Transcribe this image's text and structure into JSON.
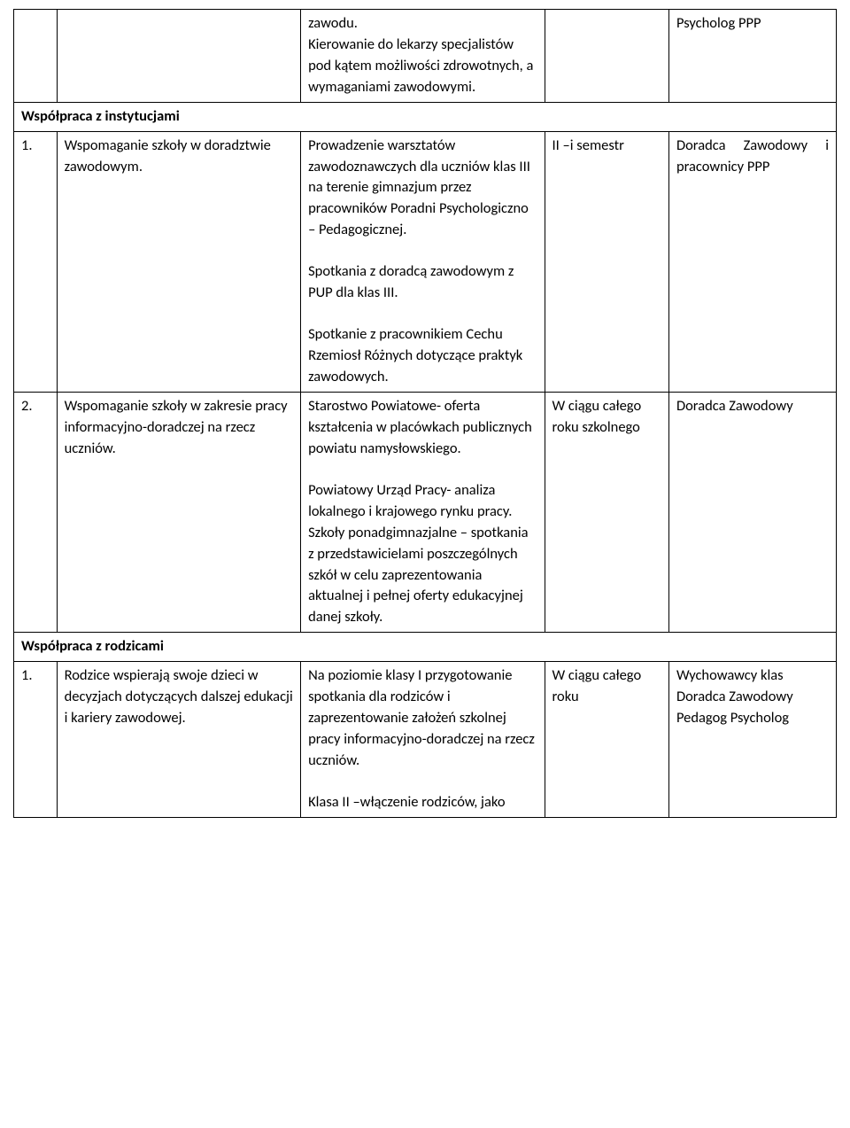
{
  "row0": {
    "col1": "",
    "col2": "",
    "col3": "zawodu.\nKierowanie do lekarzy specjalistów pod kątem możliwości zdrowotnych, a wymaganiami zawodowymi.",
    "col4": "",
    "col5": "Psycholog PPP"
  },
  "header1": "Współpraca z instytucjami",
  "row1": {
    "col1": "1.",
    "col2": "Wspomaganie szkoły w doradztwie zawodowym.",
    "col3p1": "Prowadzenie warsztatów zawodoznawczych dla uczniów klas III na terenie gimnazjum przez pracowników Poradni Psychologiczno – Pedagogicznej.",
    "col3p2": "Spotkania z doradcą zawodowym z PUP dla klas III.",
    "col3p3": "Spotkanie z pracownikiem Cechu Rzemiosł Różnych dotyczące praktyk zawodowych.",
    "col4": "II –i semestr",
    "col5": "Doradca Zawodowy i pracownicy PPP"
  },
  "row2": {
    "col1": "2.",
    "col2": "Wspomaganie szkoły w zakresie pracy informacyjno-doradczej na rzecz uczniów.",
    "col3p1": "Starostwo Powiatowe- oferta kształcenia w placówkach publicznych powiatu namysłowskiego.",
    "col3p2": "Powiatowy Urząd Pracy- analiza lokalnego i krajowego rynku pracy. Szkoły ponadgimnazjalne – spotkania z przedstawicielami poszczególnych szkół w celu zaprezentowania aktualnej i pełnej oferty edukacyjnej danej szkoły.",
    "col4": "W ciągu całego roku szkolnego",
    "col5": "Doradca Zawodowy"
  },
  "header2": "Współpraca z rodzicami",
  "row3": {
    "col1": "1.",
    "col2": "Rodzice wspierają swoje dzieci w decyzjach dotyczących dalszej edukacji i kariery zawodowej.",
    "col3p1": "Na poziomie klasy I przygotowanie spotkania dla rodziców i zaprezentowanie założeń szkolnej pracy informacyjno-doradczej na rzecz uczniów.",
    "col3p2": "Klasa II –włączenie rodziców, jako",
    "col4": "W ciągu całego roku",
    "col5": "Wychowawcy klas Doradca Zawodowy Pedagog Psycholog"
  }
}
